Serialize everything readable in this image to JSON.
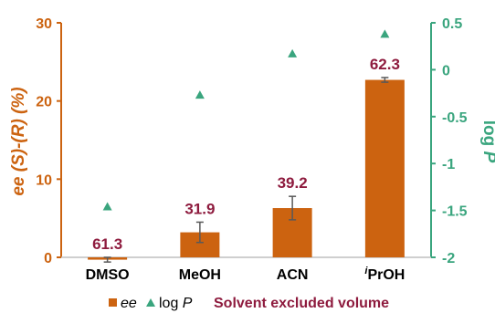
{
  "chart_data": {
    "type": "bar",
    "categories": [
      "DMSO",
      "MeOH",
      "ACN",
      "PrOH"
    ],
    "category_superscripts": [
      "",
      "",
      "",
      "i"
    ],
    "series": [
      {
        "name": "ee",
        "axis": "left",
        "values": [
          -0.3,
          3.2,
          6.3,
          22.7
        ],
        "error": [
          0.3,
          1.3,
          1.5,
          0.3
        ],
        "color": "#cc6310"
      },
      {
        "name": "log P",
        "axis": "right",
        "marker": "triangle",
        "values": [
          -1.46,
          -0.27,
          0.17,
          0.38
        ],
        "color": "#3aa57e"
      }
    ],
    "data_labels": [
      "61.3",
      "31.9",
      "39.2",
      "62.3"
    ],
    "data_label_color": "#8e1b3e",
    "ylabel_left": {
      "prefix": "ee ",
      "main": "(S)-(R) (%)"
    },
    "ylabel_right": {
      "main": "log ",
      "italic": "P"
    },
    "ylim_left": [
      0,
      30
    ],
    "yticks_left": [
      "0",
      "10",
      "20",
      "30"
    ],
    "ylim_right": [
      -2,
      0.5
    ],
    "yticks_right": [
      "-2",
      "-1.5",
      "-1",
      "-0.5",
      "0",
      "0.5"
    ],
    "left_axis_color": "#cc6310",
    "right_axis_color": "#3aa57e",
    "legend": {
      "ee_label": "ee",
      "logp_prefix": "log ",
      "logp_italic": "P",
      "extra": "Solvent excluded volume"
    },
    "grid": false
  }
}
